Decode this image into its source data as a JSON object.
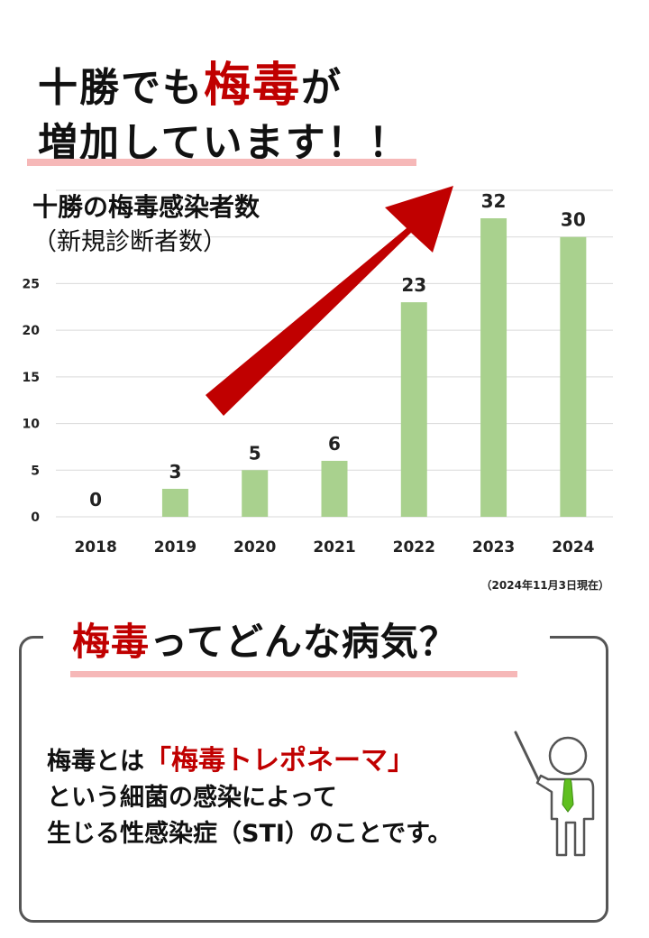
{
  "headline": {
    "line1_prefix": "十勝でも",
    "line1_highlight": "梅毒",
    "line1_suffix": "が",
    "line2": "増加しています！！"
  },
  "chart_title": {
    "line1": "十勝の梅毒感染者数",
    "line2": "（新規診断者数）"
  },
  "chart_data": {
    "type": "bar",
    "categories": [
      "2018",
      "2019",
      "2020",
      "2021",
      "2022",
      "2023",
      "2024"
    ],
    "values": [
      0,
      3,
      5,
      6,
      23,
      32,
      30
    ],
    "ylim": [
      0,
      35
    ],
    "yticks": [
      0,
      5,
      10,
      15,
      20,
      25
    ],
    "grid": true,
    "bar_color": "#a9d18e",
    "arrow_color": "#c00000"
  },
  "note": "（2024年11月3日現在）",
  "section": {
    "title_highlight": "梅毒",
    "title_rest": "ってどんな病気？",
    "line1_prefix": "梅毒とは",
    "line1_highlight": "「梅毒トレポネーマ」",
    "line2": "という細菌の感染によって",
    "line3": "生じる性感染症（STI）のことです。"
  },
  "colors": {
    "accent_red": "#c00000",
    "underline_pink": "#f6b8b8",
    "tie_green": "#5fbf1f"
  }
}
